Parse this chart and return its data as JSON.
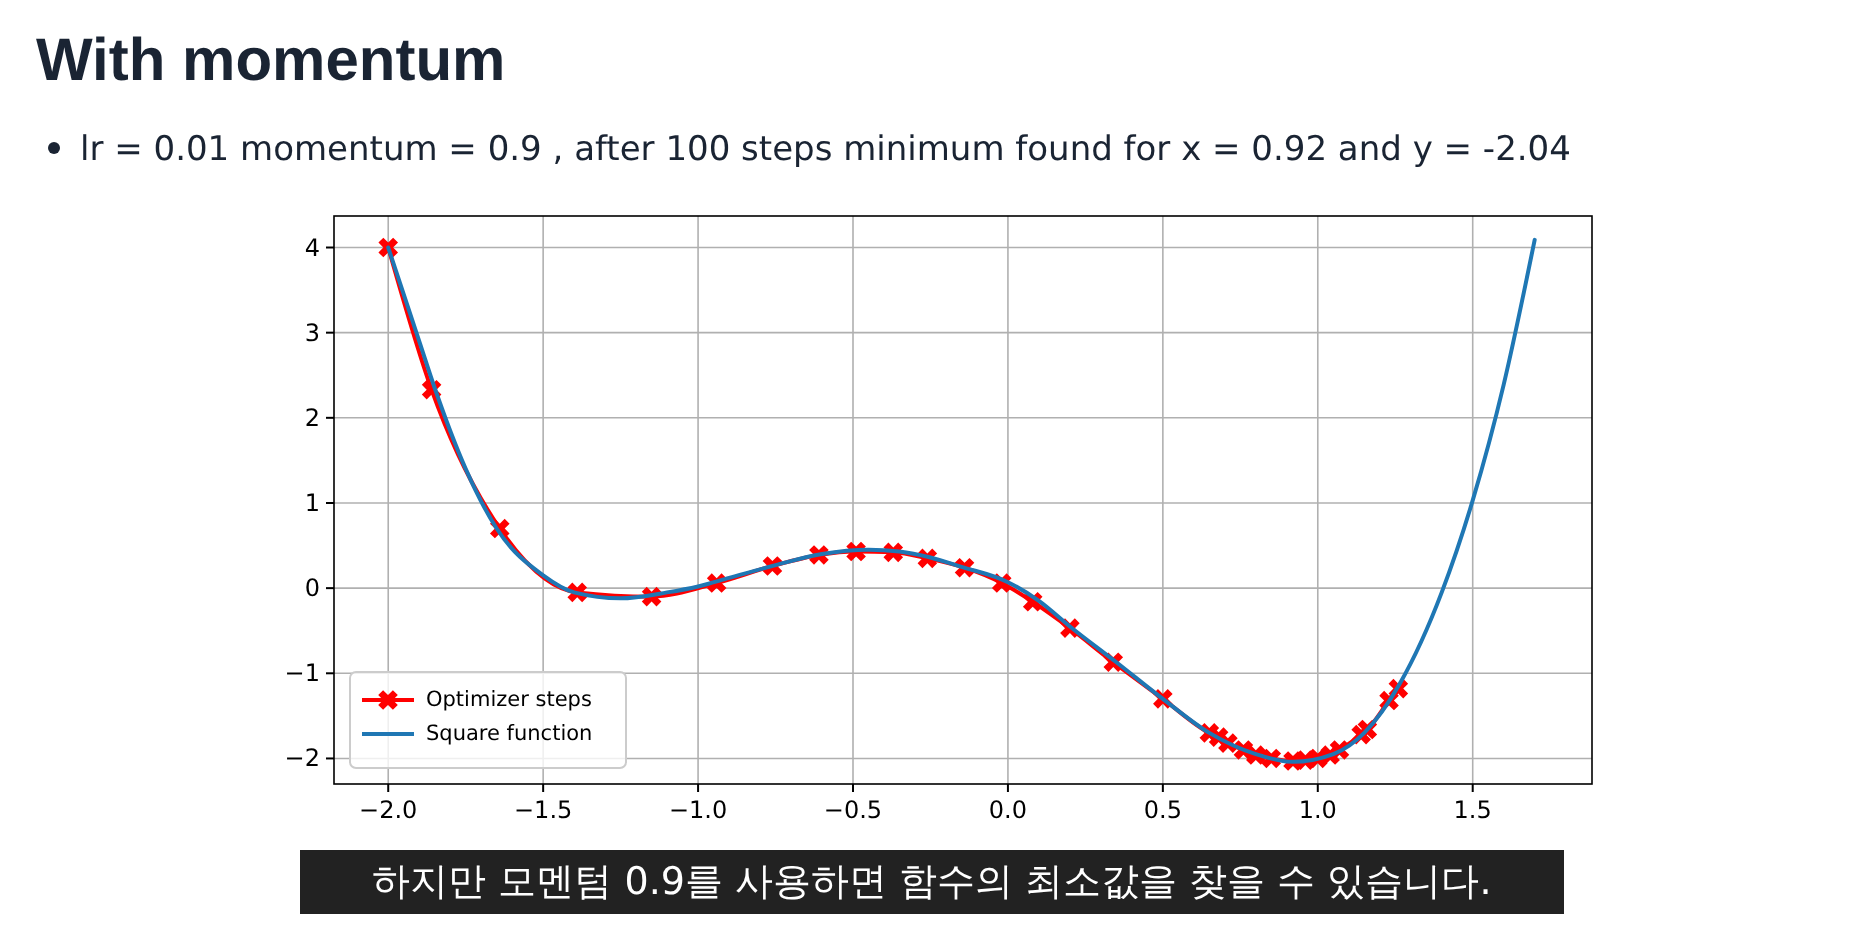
{
  "chart_data": {
    "type": "line",
    "title": "With momentum",
    "subtitle": "lr = 0.01  momentum = 0.9 , after 100 steps minimum found for  x = 0.92  and  y = -2.04",
    "annotations": [
      "하지만 모멘텀 0.9를 사용하면 함수의 최소값을 찾을 수 있습니다."
    ],
    "xlim": [
      -2.175,
      1.885
    ],
    "ylim": [
      -2.3,
      4.37
    ],
    "xticks": [
      {
        "value": -2,
        "label": "−2.0"
      },
      {
        "value": -1.5,
        "label": "−1.5"
      },
      {
        "value": -1,
        "label": "−1.0"
      },
      {
        "value": -0.5,
        "label": "−0.5"
      },
      {
        "value": 0,
        "label": "0.0"
      },
      {
        "value": 0.5,
        "label": "0.5"
      },
      {
        "value": 1,
        "label": "1.0"
      },
      {
        "value": 1.5,
        "label": "1.5"
      }
    ],
    "yticks": [
      {
        "value": -2,
        "label": "−2"
      },
      {
        "value": -1,
        "label": "−1"
      },
      0,
      1,
      2,
      3,
      4
    ],
    "grid": true,
    "legend": "bottom left",
    "series": [
      {
        "name": "Optimizer steps",
        "color": "#ff0000",
        "marker": "cross",
        "x": [
          -2.0,
          -1.86,
          -1.64,
          -1.39,
          -1.15,
          -0.94,
          -0.76,
          -0.61,
          -0.49,
          -0.37,
          -0.26,
          -0.14,
          -0.02,
          0.08,
          0.2,
          0.34,
          0.5,
          0.65,
          0.68,
          0.71,
          0.76,
          0.8,
          0.85,
          0.92,
          0.96,
          1.0,
          1.04,
          1.07,
          1.14,
          1.16,
          1.23,
          1.26
        ],
        "values": [
          4.0,
          2.33,
          0.7,
          -0.05,
          -0.1,
          0.06,
          0.26,
          0.39,
          0.43,
          0.42,
          0.35,
          0.24,
          0.06,
          -0.16,
          -0.47,
          -0.87,
          -1.3,
          -1.7,
          -1.75,
          -1.82,
          -1.9,
          -1.96,
          -2.0,
          -2.03,
          -2.02,
          -2.0,
          -1.96,
          -1.9,
          -1.72,
          -1.66,
          -1.32,
          -1.18
        ]
      },
      {
        "name": "Square function",
        "color": "#1f77b4",
        "marker": "none",
        "x": [
          -2.0,
          -1.9,
          -1.85,
          -1.75,
          -1.65,
          -1.5,
          -1.4,
          -1.25,
          -1.1,
          -1.0,
          -0.9,
          -0.75,
          -0.6,
          -0.45,
          -0.35,
          -0.25,
          -0.15,
          0,
          0.1,
          0.2,
          0.35,
          0.5,
          0.65,
          0.8,
          0.92,
          1.05,
          1.15,
          1.265,
          1.4,
          1.5,
          1.6,
          1.7
        ],
        "values": [
          4.0,
          2.9,
          2.35,
          1.4,
          0.7,
          0.15,
          -0.05,
          -0.12,
          -0.05,
          0.02,
          0.12,
          0.27,
          0.4,
          0.45,
          0.43,
          0.36,
          0.25,
          0.07,
          -0.15,
          -0.45,
          -0.87,
          -1.3,
          -1.7,
          -1.95,
          -2.04,
          -1.95,
          -1.7,
          -1.12,
          -0.05,
          1.03,
          2.39,
          4.09
        ]
      }
    ]
  }
}
